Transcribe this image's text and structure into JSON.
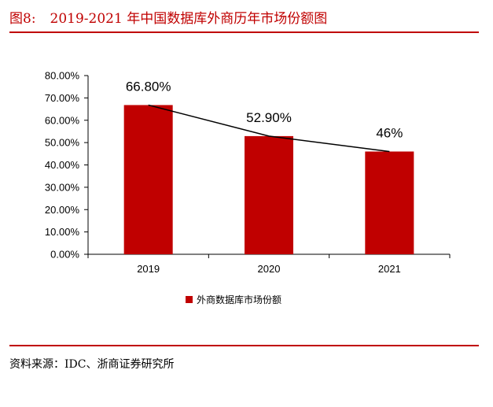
{
  "caption": {
    "figure_number": "图8:",
    "title": "2019-2021 年中国数据库外商历年市场份额图"
  },
  "source_note": "资料来源：IDC、浙商证券研究所",
  "colors": {
    "accent": "#c00000",
    "bar": "#c00000",
    "trend_line": "#000000"
  },
  "chart_data": {
    "type": "bar",
    "title": "",
    "xlabel": "",
    "ylabel": "",
    "categories": [
      "2019",
      "2020",
      "2021"
    ],
    "series": [
      {
        "name": "外商数据库市场份额",
        "values": [
          66.8,
          52.9,
          46
        ],
        "data_labels": [
          "66.80%",
          "52.90%",
          "46%"
        ]
      }
    ],
    "ylim": [
      0,
      80
    ],
    "y_ticks": [
      "0.00%",
      "10.00%",
      "20.00%",
      "30.00%",
      "40.00%",
      "50.00%",
      "60.00%",
      "70.00%",
      "80.00%"
    ],
    "trend_line": true,
    "grid": false,
    "legend_position": "bottom"
  }
}
